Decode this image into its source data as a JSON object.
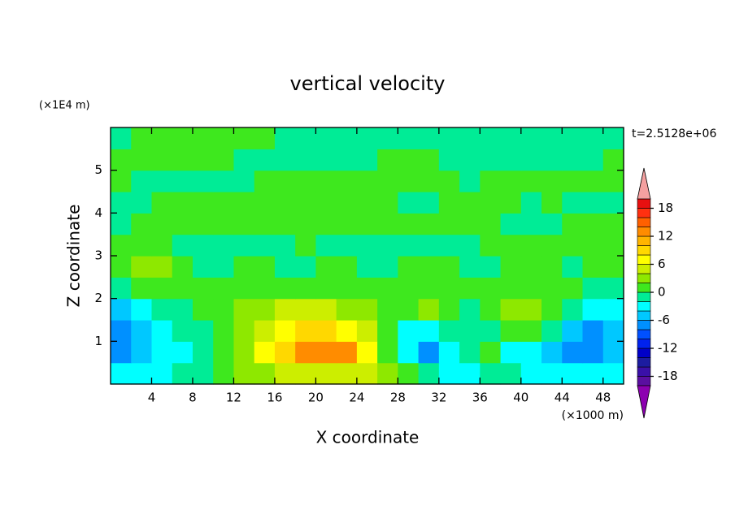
{
  "chart_data": {
    "type": "contour",
    "title": "vertical velocity",
    "x_label": "X coordinate",
    "y_label": "Z coordinate",
    "x_unit": "(×1000 m)",
    "y_unit": "(×1E4 m)",
    "time_label": "t=2.5128e+06",
    "xlim": [
      0,
      50
    ],
    "ylim": [
      0,
      6
    ],
    "xticks": [
      4,
      8,
      12,
      16,
      20,
      24,
      28,
      32,
      36,
      40,
      44,
      48
    ],
    "yticks": [
      1,
      2,
      3,
      4,
      5
    ],
    "x": [
      1,
      3,
      5,
      7,
      9,
      11,
      13,
      15,
      17,
      19,
      21,
      23,
      25,
      27,
      29,
      31,
      33,
      35,
      37,
      39,
      41,
      43,
      45,
      47,
      49
    ],
    "y": [
      0.25,
      0.75,
      1.25,
      1.75,
      2.25,
      2.75,
      3.25,
      3.75,
      4.25,
      4.75,
      5.25,
      5.75
    ],
    "values": [
      [
        -3,
        -3,
        -3,
        -2,
        -1,
        1,
        2,
        3,
        4,
        4,
        5,
        5,
        4,
        3,
        1,
        -2,
        -3,
        -3,
        -2,
        -2,
        -3,
        -3,
        -4,
        -3,
        -3
      ],
      [
        -7,
        -5,
        -4,
        -3,
        -1,
        1,
        3,
        6,
        9,
        12,
        13,
        12,
        7,
        1,
        -3,
        -7,
        -4,
        -1,
        1,
        -3,
        -3,
        -5,
        -7,
        -7,
        -6
      ],
      [
        -7,
        -5,
        -4,
        -2,
        -1,
        1,
        3,
        5,
        7,
        8,
        8,
        7,
        5,
        1,
        -3,
        -4,
        -2,
        -1,
        -1,
        0,
        1,
        -2,
        -5,
        -7,
        -5
      ],
      [
        -5,
        -3,
        -2,
        -1,
        0,
        1,
        2,
        3,
        4,
        4,
        4,
        3,
        2,
        1,
        1,
        2,
        1,
        -1,
        0,
        3,
        3,
        1,
        -2,
        -4,
        -3
      ],
      [
        -1,
        0,
        1,
        1,
        1,
        1,
        1,
        1,
        1,
        1,
        1,
        1,
        1,
        1,
        1,
        1,
        1,
        0,
        1,
        1,
        1,
        1,
        0,
        -1,
        -1
      ],
      [
        1,
        3,
        3,
        1,
        -1,
        -1,
        0,
        1,
        -1,
        -1,
        0,
        1,
        -1,
        -1,
        0,
        1,
        0,
        -1,
        -1,
        0,
        1,
        0,
        -1,
        1,
        1
      ],
      [
        0,
        1,
        0,
        -1,
        -1,
        -1,
        -1,
        -1,
        -1,
        0,
        -1,
        -1,
        -1,
        -1,
        -1,
        -1,
        -1,
        -1,
        0,
        1,
        1,
        1,
        1,
        1,
        0
      ],
      [
        -1,
        1,
        1,
        1,
        1,
        1,
        1,
        1,
        1,
        1,
        1,
        1,
        1,
        1,
        1,
        1,
        1,
        1,
        1,
        -1,
        -1,
        -1,
        1,
        1,
        1
      ],
      [
        -1,
        -1,
        1,
        1,
        1,
        1,
        1,
        1,
        1,
        1,
        1,
        1,
        1,
        1,
        -1,
        -1,
        1,
        1,
        1,
        1,
        -1,
        1,
        -1,
        -1,
        -1
      ],
      [
        1,
        -1,
        -1,
        -1,
        -1,
        -1,
        -1,
        1,
        1,
        1,
        1,
        1,
        1,
        1,
        1,
        1,
        1,
        -1,
        1,
        1,
        1,
        1,
        1,
        1,
        1
      ],
      [
        1,
        1,
        1,
        1,
        1,
        1,
        -1,
        -1,
        -1,
        -1,
        -1,
        -1,
        -1,
        1,
        1,
        1,
        -1,
        -1,
        -1,
        -1,
        -1,
        -1,
        -1,
        -1,
        1
      ],
      [
        -1,
        1,
        1,
        1,
        1,
        1,
        1,
        1,
        -1,
        -1,
        -1,
        -1,
        -1,
        -1,
        -1,
        -1,
        -1,
        -1,
        -1,
        -1,
        -1,
        -1,
        -1,
        -1,
        -1
      ]
    ],
    "levels": [
      -20,
      -18,
      -16,
      -14,
      -12,
      -10,
      -8,
      -6,
      -4,
      -2,
      0,
      2,
      4,
      6,
      8,
      10,
      12,
      14,
      16,
      18,
      20
    ],
    "colors": [
      "#5a0fa0",
      "#3a10a8",
      "#1c1ca0",
      "#0000c8",
      "#0022ee",
      "#0050ff",
      "#0090ff",
      "#00c8ff",
      "#00ffff",
      "#00ec96",
      "#3ee81e",
      "#8ee800",
      "#ccee00",
      "#ffff00",
      "#ffd800",
      "#ffb400",
      "#ff8c00",
      "#ff6000",
      "#ff3010",
      "#e81010"
    ],
    "under_color": "#8c00b0",
    "over_color": "#f4a0a0",
    "colorbar_ticks": [
      -18,
      -12,
      -6,
      0,
      6,
      12,
      18
    ]
  }
}
